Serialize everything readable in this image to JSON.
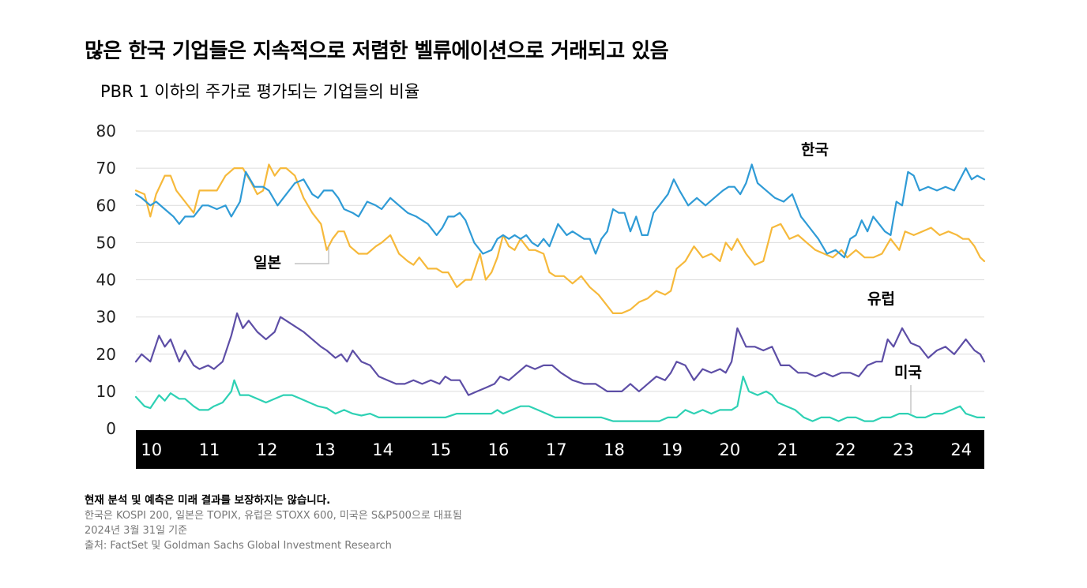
{
  "title": "많은 한국 기업들은 지속적으로 저렴한 벨류에이션으로 거래되고 있음",
  "subtitle": "PBR 1 이하의 주가로 평가되는 기업들의 비율",
  "notes": {
    "disclaimer": "현재 분석 및 예측은 미래 결과를 보장하지는 않습니다.",
    "line1": "한국은 KOSPI 200, 일본은 TOPIX, 유럽은 STOXX 600, 미국은 S&P500으로 대표됨",
    "line2": "2024년 3월 31일 기준",
    "line3": "출처: FactSet 및 Goldman Sachs Global Investment Research"
  },
  "chart_data": {
    "type": "line",
    "ylim": [
      0,
      80
    ],
    "yticks": [
      0,
      10,
      20,
      30,
      40,
      50,
      60,
      70,
      80
    ],
    "xlim": [
      2009.75,
      2024.42
    ],
    "xticks": [
      {
        "x": 2010,
        "label": "10"
      },
      {
        "x": 2011,
        "label": "11"
      },
      {
        "x": 2012,
        "label": "12"
      },
      {
        "x": 2013,
        "label": "13"
      },
      {
        "x": 2014,
        "label": "14"
      },
      {
        "x": 2015,
        "label": "15"
      },
      {
        "x": 2016,
        "label": "16"
      },
      {
        "x": 2017,
        "label": "17"
      },
      {
        "x": 2018,
        "label": "18"
      },
      {
        "x": 2019,
        "label": "19"
      },
      {
        "x": 2020,
        "label": "20"
      },
      {
        "x": 2021,
        "label": "21"
      },
      {
        "x": 2022,
        "label": "22"
      },
      {
        "x": 2023,
        "label": "23"
      },
      {
        "x": 2024,
        "label": "24"
      }
    ],
    "grid": true,
    "series": [
      {
        "name": "한국",
        "color": "#2f9bd6",
        "x": [
          2009.75,
          2009.85,
          2010.0,
          2010.1,
          2010.25,
          2010.4,
          2010.5,
          2010.6,
          2010.75,
          2010.9,
          2011.0,
          2011.15,
          2011.3,
          2011.4,
          2011.55,
          2011.65,
          2011.8,
          2011.95,
          2012.05,
          2012.2,
          2012.3,
          2012.5,
          2012.65,
          2012.8,
          2012.9,
          2013.0,
          2013.15,
          2013.25,
          2013.35,
          2013.5,
          2013.6,
          2013.75,
          2013.9,
          2014.0,
          2014.15,
          2014.3,
          2014.45,
          2014.6,
          2014.7,
          2014.8,
          2014.95,
          2015.05,
          2015.15,
          2015.25,
          2015.35,
          2015.45,
          2015.6,
          2015.75,
          2015.9,
          2016.0,
          2016.1,
          2016.2,
          2016.3,
          2016.4,
          2016.5,
          2016.6,
          2016.7,
          2016.8,
          2016.9,
          2017.05,
          2017.2,
          2017.3,
          2017.4,
          2017.5,
          2017.6,
          2017.7,
          2017.8,
          2017.9,
          2018.0,
          2018.1,
          2018.2,
          2018.3,
          2018.4,
          2018.5,
          2018.6,
          2018.7,
          2018.8,
          2018.95,
          2019.05,
          2019.15,
          2019.3,
          2019.45,
          2019.6,
          2019.75,
          2019.9,
          2020.0,
          2020.1,
          2020.2,
          2020.3,
          2020.4,
          2020.5,
          2020.65,
          2020.8,
          2020.95,
          2021.1,
          2021.25,
          2021.4,
          2021.55,
          2021.7,
          2021.85,
          2022.0,
          2022.1,
          2022.2,
          2022.3,
          2022.4,
          2022.5,
          2022.6,
          2022.7,
          2022.8,
          2022.9,
          2023.0,
          2023.1,
          2023.2,
          2023.3,
          2023.45,
          2023.6,
          2023.75,
          2023.9,
          2024.0,
          2024.1,
          2024.2,
          2024.3,
          2024.42
        ],
        "values": [
          63,
          62,
          60,
          61,
          59,
          57,
          55,
          57,
          57,
          60,
          60,
          59,
          60,
          57,
          61,
          69,
          65,
          65,
          64,
          60,
          62,
          66,
          67,
          63,
          62,
          64,
          64,
          62,
          59,
          58,
          57,
          61,
          60,
          59,
          62,
          60,
          58,
          57,
          56,
          55,
          52,
          54,
          57,
          57,
          58,
          56,
          50,
          47,
          48,
          51,
          52,
          51,
          52,
          51,
          52,
          50,
          49,
          51,
          49,
          55,
          52,
          53,
          52,
          51,
          51,
          47,
          51,
          53,
          59,
          58,
          58,
          53,
          57,
          52,
          52,
          58,
          60,
          63,
          67,
          64,
          60,
          62,
          60,
          62,
          64,
          65,
          65,
          63,
          66,
          71,
          66,
          64,
          62,
          61,
          63,
          57,
          54,
          51,
          47,
          48,
          46,
          51,
          52,
          56,
          53,
          57,
          55,
          53,
          52,
          61,
          60,
          69,
          68,
          64,
          65,
          64,
          65,
          64,
          67,
          70,
          67,
          68,
          67
        ]
      },
      {
        "name": "일본",
        "color": "#f6b93b",
        "x": [
          2009.75,
          2009.9,
          2010.0,
          2010.1,
          2010.25,
          2010.35,
          2010.45,
          2010.6,
          2010.75,
          2010.85,
          2011.0,
          2011.15,
          2011.3,
          2011.45,
          2011.6,
          2011.75,
          2011.85,
          2011.95,
          2012.05,
          2012.15,
          2012.25,
          2012.35,
          2012.5,
          2012.65,
          2012.8,
          2012.95,
          2013.05,
          2013.15,
          2013.25,
          2013.35,
          2013.45,
          2013.6,
          2013.75,
          2013.9,
          2014.0,
          2014.15,
          2014.3,
          2014.45,
          2014.55,
          2014.65,
          2014.8,
          2014.95,
          2015.05,
          2015.15,
          2015.3,
          2015.45,
          2015.55,
          2015.7,
          2015.8,
          2015.9,
          2016.0,
          2016.1,
          2016.2,
          2016.3,
          2016.4,
          2016.55,
          2016.65,
          2016.8,
          2016.9,
          2017.0,
          2017.15,
          2017.3,
          2017.45,
          2017.6,
          2017.75,
          2017.9,
          2018.0,
          2018.15,
          2018.3,
          2018.45,
          2018.6,
          2018.75,
          2018.9,
          2019.0,
          2019.1,
          2019.25,
          2019.4,
          2019.55,
          2019.7,
          2019.85,
          2019.95,
          2020.05,
          2020.15,
          2020.3,
          2020.45,
          2020.6,
          2020.75,
          2020.9,
          2021.05,
          2021.2,
          2021.35,
          2021.5,
          2021.65,
          2021.8,
          2021.95,
          2022.05,
          2022.2,
          2022.35,
          2022.5,
          2022.65,
          2022.8,
          2022.95,
          2023.05,
          2023.2,
          2023.35,
          2023.5,
          2023.65,
          2023.8,
          2023.95,
          2024.05,
          2024.15,
          2024.25,
          2024.35,
          2024.42
        ],
        "values": [
          64,
          63,
          57,
          63,
          68,
          68,
          64,
          61,
          58,
          64,
          64,
          64,
          68,
          70,
          70,
          66,
          63,
          64,
          71,
          68,
          70,
          70,
          68,
          62,
          58,
          55,
          48,
          51,
          53,
          53,
          49,
          47,
          47,
          49,
          50,
          52,
          47,
          45,
          44,
          46,
          43,
          43,
          42,
          42,
          38,
          40,
          40,
          47,
          40,
          42,
          46,
          52,
          49,
          48,
          51,
          48,
          48,
          47,
          42,
          41,
          41,
          39,
          41,
          38,
          36,
          33,
          31,
          31,
          32,
          34,
          35,
          37,
          36,
          37,
          43,
          45,
          49,
          46,
          47,
          45,
          50,
          48,
          51,
          47,
          44,
          45,
          54,
          55,
          51,
          52,
          50,
          48,
          47,
          46,
          48,
          46,
          48,
          46,
          46,
          47,
          51,
          48,
          53,
          52,
          53,
          54,
          52,
          53,
          52,
          51,
          51,
          49,
          46,
          45
        ]
      },
      {
        "name": "유럽",
        "color": "#5d4ea6",
        "x": [
          2009.75,
          2009.85,
          2010.0,
          2010.15,
          2010.25,
          2010.35,
          2010.5,
          2010.6,
          2010.75,
          2010.85,
          2011.0,
          2011.1,
          2011.25,
          2011.4,
          2011.5,
          2011.6,
          2011.7,
          2011.85,
          2012.0,
          2012.15,
          2012.25,
          2012.45,
          2012.65,
          2012.8,
          2012.95,
          2013.05,
          2013.2,
          2013.3,
          2013.4,
          2013.5,
          2013.65,
          2013.8,
          2013.95,
          2014.1,
          2014.25,
          2014.4,
          2014.55,
          2014.7,
          2014.85,
          2015.0,
          2015.1,
          2015.2,
          2015.35,
          2015.5,
          2015.65,
          2015.8,
          2015.95,
          2016.05,
          2016.2,
          2016.35,
          2016.5,
          2016.65,
          2016.8,
          2016.95,
          2017.1,
          2017.3,
          2017.5,
          2017.7,
          2017.9,
          2018.0,
          2018.15,
          2018.3,
          2018.45,
          2018.6,
          2018.75,
          2018.9,
          2019.0,
          2019.1,
          2019.25,
          2019.4,
          2019.55,
          2019.7,
          2019.85,
          2019.95,
          2020.05,
          2020.15,
          2020.3,
          2020.45,
          2020.6,
          2020.75,
          2020.9,
          2021.05,
          2021.2,
          2021.35,
          2021.5,
          2021.65,
          2021.8,
          2021.95,
          2022.1,
          2022.25,
          2022.4,
          2022.55,
          2022.65,
          2022.75,
          2022.85,
          2023.0,
          2023.15,
          2023.3,
          2023.45,
          2023.6,
          2023.75,
          2023.9,
          2024.0,
          2024.1,
          2024.25,
          2024.35,
          2024.42
        ],
        "values": [
          18,
          20,
          18,
          25,
          22,
          24,
          18,
          21,
          17,
          16,
          17,
          16,
          18,
          25,
          31,
          27,
          29,
          26,
          24,
          26,
          30,
          28,
          26,
          24,
          22,
          21,
          19,
          20,
          18,
          21,
          18,
          17,
          14,
          13,
          12,
          12,
          13,
          12,
          13,
          12,
          14,
          13,
          13,
          9,
          10,
          11,
          12,
          14,
          13,
          15,
          17,
          16,
          17,
          17,
          15,
          13,
          12,
          12,
          10,
          10,
          10,
          12,
          10,
          12,
          14,
          13,
          15,
          18,
          17,
          13,
          16,
          15,
          16,
          15,
          18,
          27,
          22,
          22,
          21,
          22,
          17,
          17,
          15,
          15,
          14,
          15,
          14,
          15,
          15,
          14,
          17,
          18,
          18,
          24,
          22,
          27,
          23,
          22,
          19,
          21,
          22,
          20,
          22,
          24,
          21,
          20,
          18
        ]
      },
      {
        "name": "미국",
        "color": "#2ed1b4",
        "x": [
          2009.75,
          2009.9,
          2010.0,
          2010.15,
          2010.25,
          2010.35,
          2010.5,
          2010.6,
          2010.75,
          2010.85,
          2011.0,
          2011.1,
          2011.25,
          2011.4,
          2011.45,
          2011.55,
          2011.7,
          2011.85,
          2012.0,
          2012.15,
          2012.3,
          2012.45,
          2012.6,
          2012.75,
          2012.9,
          2013.05,
          2013.2,
          2013.35,
          2013.5,
          2013.65,
          2013.8,
          2013.95,
          2014.1,
          2014.3,
          2014.5,
          2014.7,
          2014.9,
          2015.1,
          2015.3,
          2015.5,
          2015.7,
          2015.9,
          2016.0,
          2016.1,
          2016.25,
          2016.4,
          2016.55,
          2016.7,
          2016.85,
          2017.0,
          2017.2,
          2017.4,
          2017.6,
          2017.8,
          2018.0,
          2018.2,
          2018.4,
          2018.6,
          2018.8,
          2018.95,
          2019.1,
          2019.25,
          2019.4,
          2019.55,
          2019.7,
          2019.85,
          2019.95,
          2020.05,
          2020.15,
          2020.25,
          2020.35,
          2020.5,
          2020.65,
          2020.75,
          2020.85,
          2021.0,
          2021.15,
          2021.3,
          2021.45,
          2021.6,
          2021.75,
          2021.9,
          2022.05,
          2022.2,
          2022.35,
          2022.5,
          2022.65,
          2022.8,
          2022.95,
          2023.1,
          2023.25,
          2023.4,
          2023.55,
          2023.7,
          2023.85,
          2024.0,
          2024.1,
          2024.2,
          2024.3,
          2024.42
        ],
        "values": [
          8.5,
          6,
          5.5,
          9,
          7.5,
          9.5,
          8,
          8,
          6,
          5,
          5,
          6,
          7,
          10,
          13,
          9,
          9,
          8,
          7,
          8,
          9,
          9,
          8,
          7,
          6,
          5.5,
          4,
          5,
          4,
          3.5,
          4,
          3,
          3,
          3,
          3,
          3,
          3,
          3,
          4,
          4,
          4,
          4,
          5,
          4,
          5,
          6,
          6,
          5,
          4,
          3,
          3,
          3,
          3,
          3,
          2,
          2,
          2,
          2,
          2,
          3,
          3,
          5,
          4,
          5,
          4,
          5,
          5,
          5,
          6,
          14,
          10,
          9,
          10,
          9,
          7,
          6,
          5,
          3,
          2,
          3,
          3,
          2,
          3,
          3,
          2,
          2,
          3,
          3,
          4,
          4,
          3,
          3,
          4,
          4,
          5,
          6,
          4,
          3.5,
          3,
          3
        ]
      }
    ],
    "annotations": [
      {
        "text": "한국",
        "series": "한국"
      },
      {
        "text": "일본",
        "series": "일본"
      },
      {
        "text": "유럽",
        "series": "유럽"
      },
      {
        "text": "미국",
        "series": "미국"
      }
    ]
  }
}
